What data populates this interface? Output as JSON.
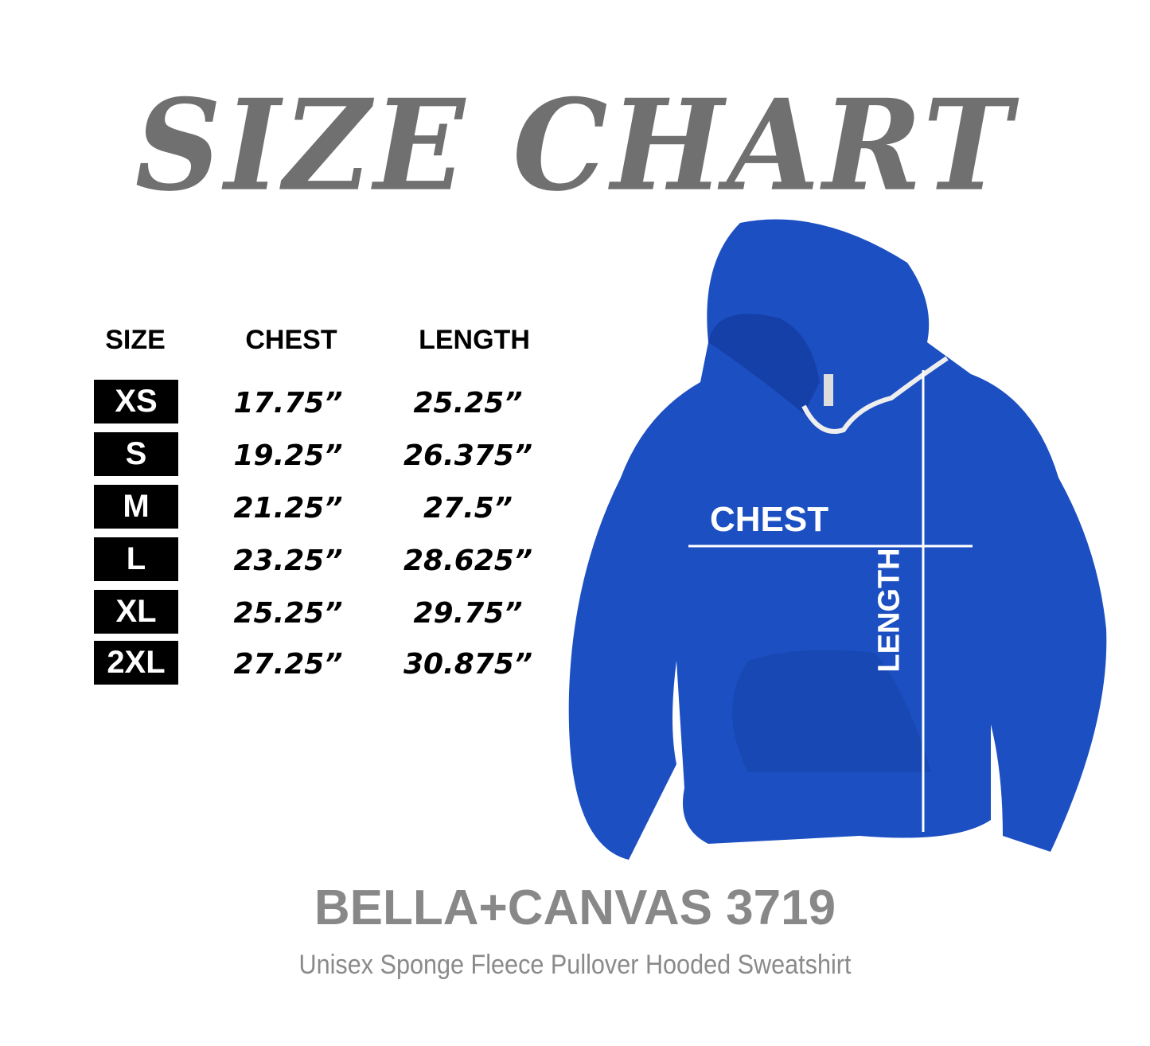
{
  "title": "SIZE CHART",
  "headers": {
    "size": "SIZE",
    "chest": "CHEST",
    "length": "LENGTH"
  },
  "rows": [
    {
      "size": "XS",
      "chest": "17.75”",
      "length": "25.25”"
    },
    {
      "size": "S",
      "chest": "19.25”",
      "length": "26.375”"
    },
    {
      "size": "M",
      "chest": "21.25”",
      "length": "27.5”"
    },
    {
      "size": "L",
      "chest": "23.25”",
      "length": "28.625”"
    },
    {
      "size": "XL",
      "chest": "25.25”",
      "length": "29.75”"
    },
    {
      "size": "2XL",
      "chest": "27.25”",
      "length": "30.875”"
    }
  ],
  "hoodie": {
    "color": "#1c4fc2",
    "chest_label": "CHEST",
    "length_label": "LENGTH"
  },
  "brand": "BELLA+CANVAS 3719",
  "subtitle": "Unisex Sponge Fleece Pullover Hooded Sweatshirt"
}
